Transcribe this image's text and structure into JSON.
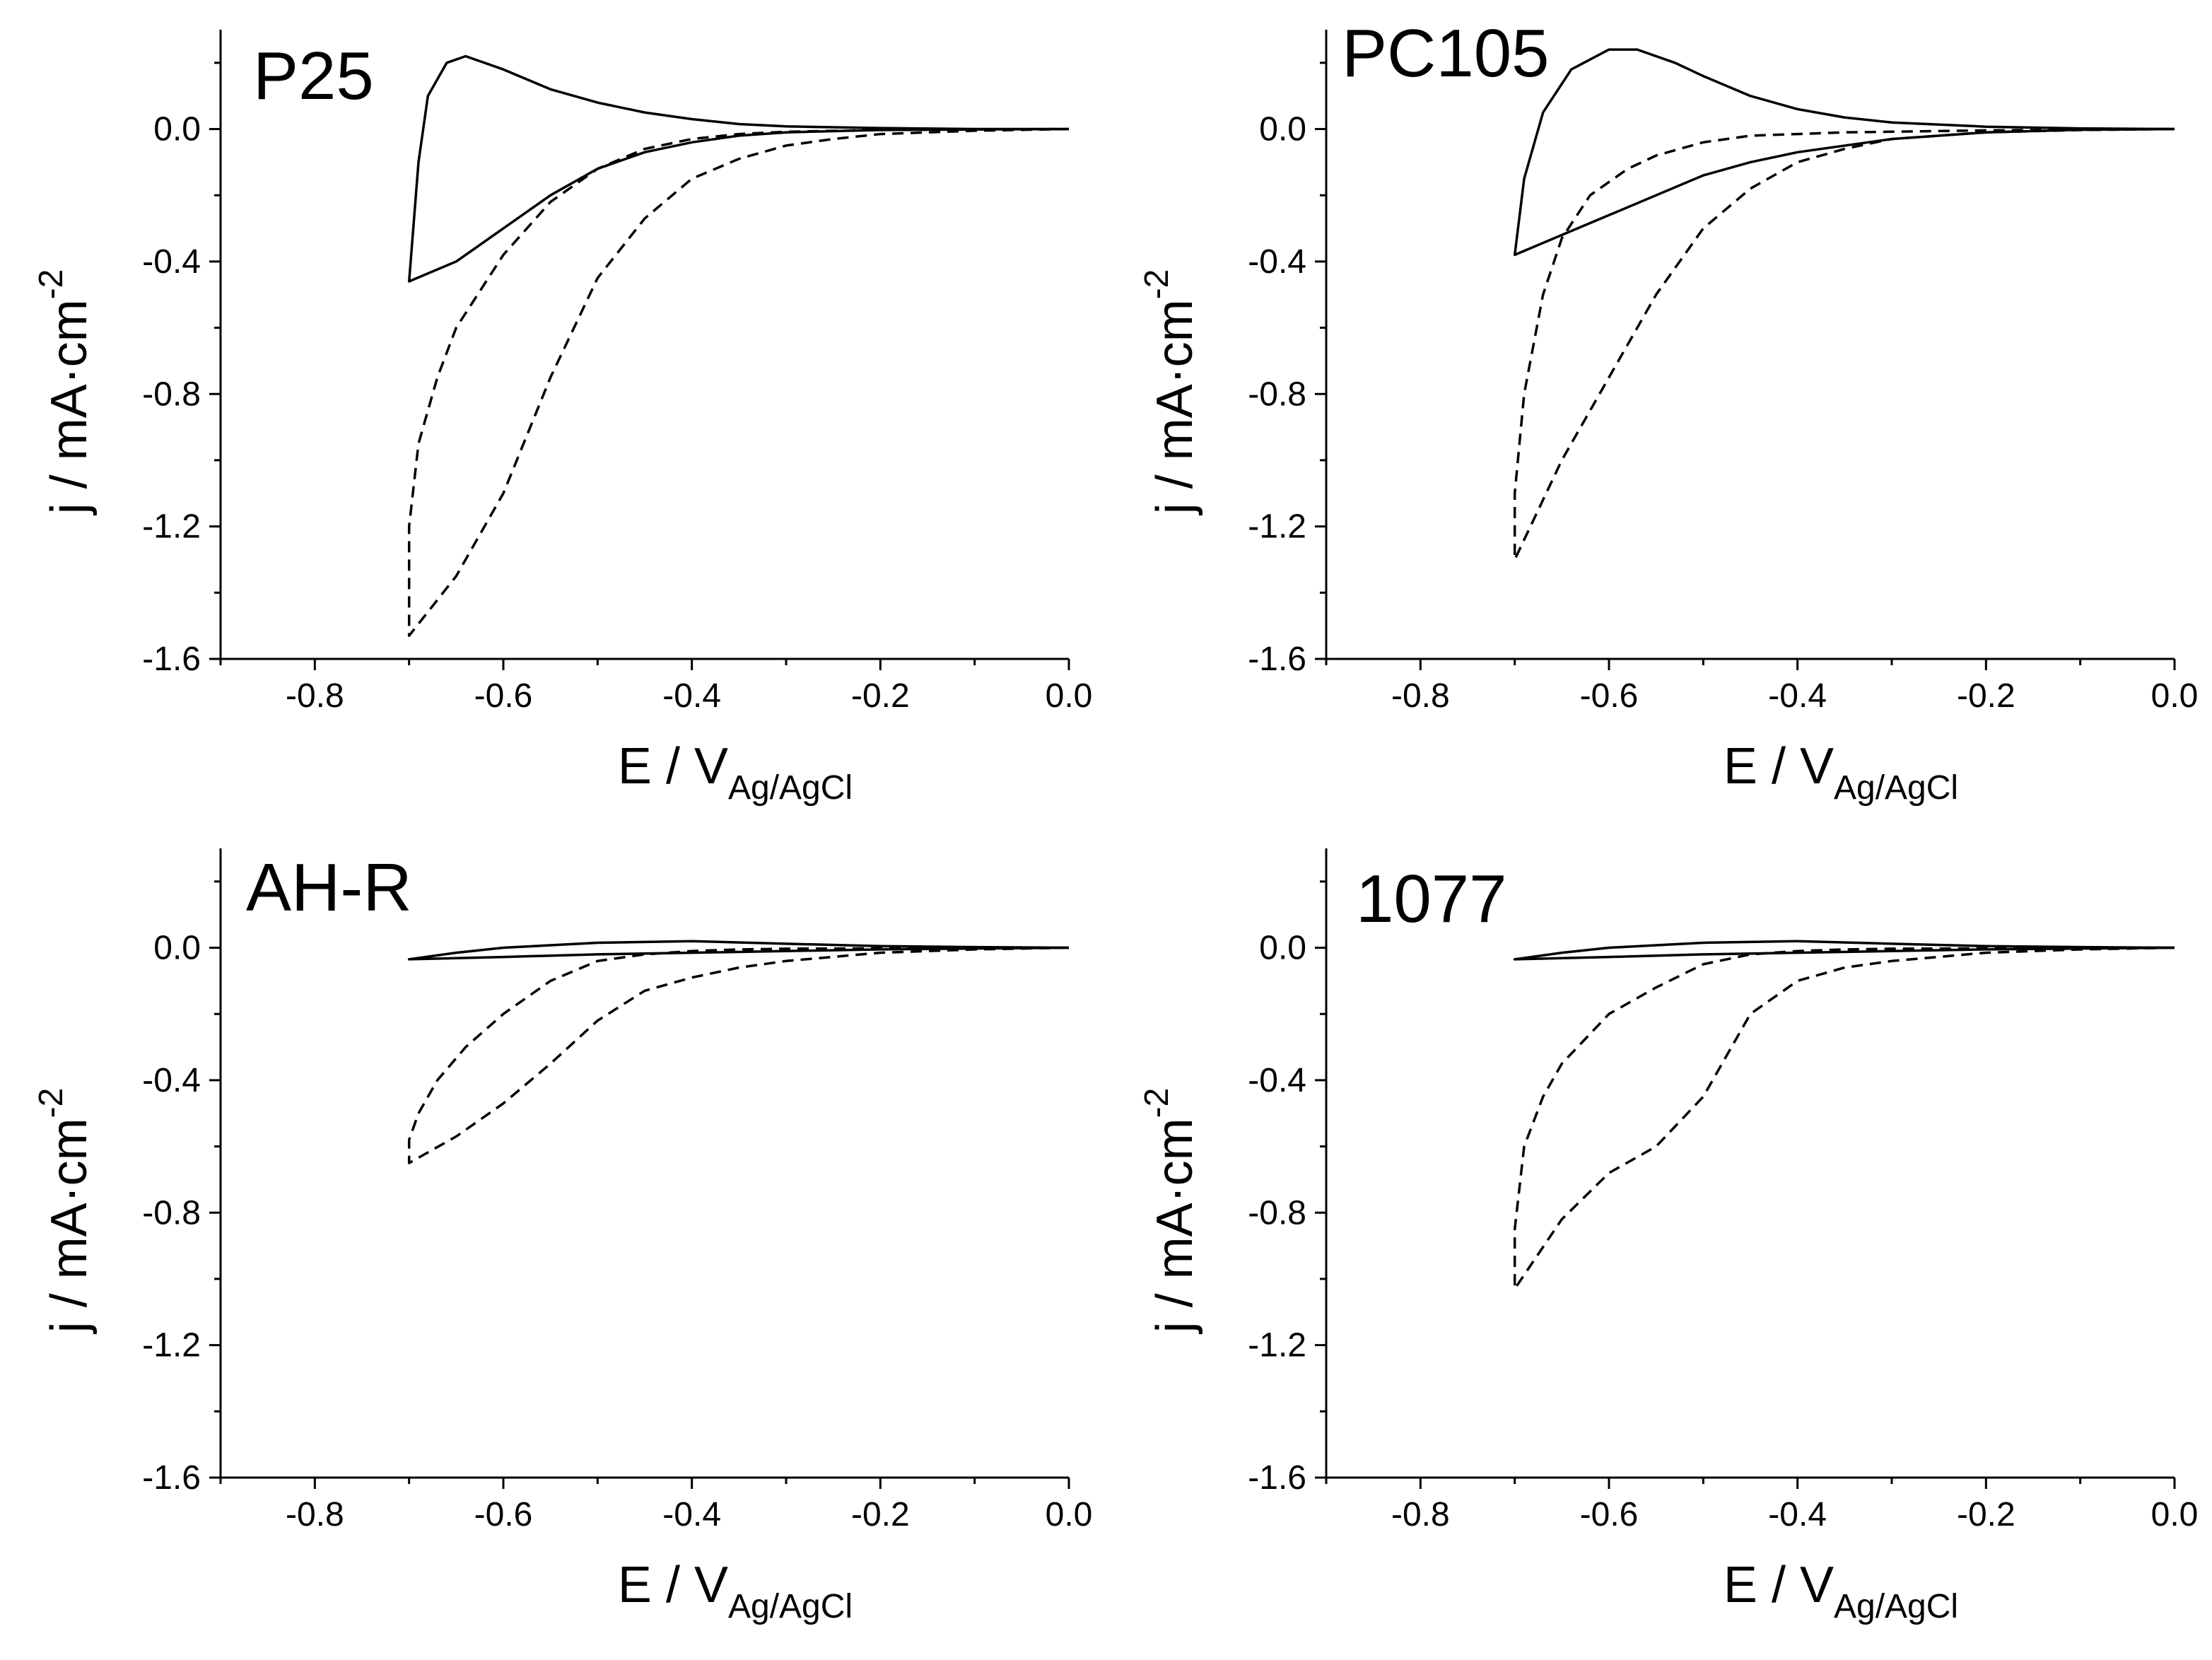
{
  "figure": {
    "axis_labels": {
      "xlabel_main": "E / V",
      "xlabel_sub": "Ag/AgCl",
      "ylabel_main": "j / mA·cm",
      "ylabel_sup": "-2"
    }
  },
  "chart_data": [
    {
      "type": "line",
      "title": "P25",
      "xlabel": "E / V_Ag/AgCl",
      "ylabel": "j / mA·cm^-2",
      "xlim": [
        -0.9,
        0.0
      ],
      "ylim": [
        -1.6,
        0.3
      ],
      "xticks": [
        "-0.8",
        "-0.6",
        "-0.4",
        "-0.2",
        "0.0"
      ],
      "yticks": [
        "0.0",
        "-0.4",
        "-0.8",
        "-1.2",
        "-1.6"
      ],
      "series": [
        {
          "name": "solid",
          "style": "solid",
          "x": [
            0.0,
            -0.1,
            -0.2,
            -0.3,
            -0.35,
            -0.4,
            -0.45,
            -0.5,
            -0.55,
            -0.6,
            -0.65,
            -0.7,
            -0.69,
            -0.68,
            -0.66,
            -0.64,
            -0.6,
            -0.55,
            -0.5,
            -0.45,
            -0.4,
            -0.35,
            -0.3,
            -0.2,
            -0.1,
            0.0
          ],
          "y": [
            0.0,
            -0.001,
            -0.003,
            -0.01,
            -0.02,
            -0.04,
            -0.07,
            -0.12,
            -0.2,
            -0.3,
            -0.4,
            -0.46,
            -0.1,
            0.1,
            0.2,
            0.22,
            0.18,
            0.12,
            0.08,
            0.05,
            0.03,
            0.015,
            0.008,
            0.003,
            0.0,
            0.0
          ]
        },
        {
          "name": "dashed",
          "style": "dashed",
          "x": [
            0.0,
            -0.1,
            -0.2,
            -0.25,
            -0.3,
            -0.35,
            -0.4,
            -0.45,
            -0.5,
            -0.55,
            -0.6,
            -0.65,
            -0.7,
            -0.7,
            -0.69,
            -0.67,
            -0.65,
            -0.6,
            -0.55,
            -0.5,
            -0.45,
            -0.4,
            -0.35,
            -0.3,
            -0.2,
            -0.1,
            0.0
          ],
          "y": [
            0.0,
            -0.005,
            -0.015,
            -0.03,
            -0.05,
            -0.09,
            -0.15,
            -0.27,
            -0.45,
            -0.75,
            -1.1,
            -1.35,
            -1.53,
            -1.2,
            -0.95,
            -0.75,
            -0.6,
            -0.38,
            -0.22,
            -0.12,
            -0.06,
            -0.03,
            -0.015,
            -0.008,
            -0.003,
            -0.001,
            0.0
          ]
        }
      ]
    },
    {
      "type": "line",
      "title": "PC105",
      "xlabel": "E / V_Ag/AgCl",
      "ylabel": "j / mA·cm^-2",
      "xlim": [
        -0.9,
        0.0
      ],
      "ylim": [
        -1.6,
        0.3
      ],
      "xticks": [
        "-0.8",
        "-0.6",
        "-0.4",
        "-0.2",
        "0.0"
      ],
      "yticks": [
        "0.0",
        "-0.4",
        "-0.8",
        "-1.2",
        "-1.6"
      ],
      "series": [
        {
          "name": "solid",
          "style": "solid",
          "x": [
            0.0,
            -0.1,
            -0.2,
            -0.3,
            -0.4,
            -0.45,
            -0.5,
            -0.55,
            -0.6,
            -0.65,
            -0.7,
            -0.69,
            -0.67,
            -0.64,
            -0.6,
            -0.57,
            -0.53,
            -0.5,
            -0.45,
            -0.4,
            -0.35,
            -0.3,
            -0.2,
            -0.1,
            0.0
          ],
          "y": [
            0.0,
            -0.002,
            -0.01,
            -0.03,
            -0.07,
            -0.1,
            -0.14,
            -0.2,
            -0.26,
            -0.32,
            -0.38,
            -0.15,
            0.05,
            0.18,
            0.24,
            0.24,
            0.2,
            0.16,
            0.1,
            0.06,
            0.035,
            0.02,
            0.007,
            0.002,
            0.0
          ]
        },
        {
          "name": "dashed",
          "style": "dashed",
          "x": [
            0.0,
            -0.1,
            -0.2,
            -0.3,
            -0.35,
            -0.4,
            -0.45,
            -0.5,
            -0.55,
            -0.6,
            -0.65,
            -0.7,
            -0.7,
            -0.69,
            -0.67,
            -0.65,
            -0.62,
            -0.58,
            -0.55,
            -0.5,
            -0.45,
            -0.4,
            -0.35,
            -0.3,
            -0.2,
            -0.1,
            0.0
          ],
          "y": [
            0.0,
            -0.003,
            -0.01,
            -0.03,
            -0.06,
            -0.1,
            -0.18,
            -0.3,
            -0.5,
            -0.75,
            -1.0,
            -1.3,
            -1.1,
            -0.8,
            -0.5,
            -0.33,
            -0.2,
            -0.12,
            -0.08,
            -0.04,
            -0.02,
            -0.015,
            -0.01,
            -0.008,
            -0.004,
            -0.002,
            0.0
          ]
        }
      ]
    },
    {
      "type": "line",
      "title": "AH-R",
      "xlabel": "E / V_Ag/AgCl",
      "ylabel": "j / mA·cm^-2",
      "xlim": [
        -0.9,
        0.0
      ],
      "ylim": [
        -1.6,
        0.3
      ],
      "xticks": [
        "-0.8",
        "-0.6",
        "-0.4",
        "-0.2",
        "0.0"
      ],
      "yticks": [
        "0.0",
        "-0.4",
        "-0.8",
        "-1.2",
        "-1.6"
      ],
      "series": [
        {
          "name": "solid",
          "style": "solid",
          "x": [
            0.0,
            -0.2,
            -0.4,
            -0.5,
            -0.6,
            -0.7,
            -0.65,
            -0.6,
            -0.5,
            -0.4,
            -0.3,
            -0.2,
            -0.1,
            0.0
          ],
          "y": [
            0.0,
            -0.005,
            -0.015,
            -0.02,
            -0.028,
            -0.035,
            -0.015,
            0.0,
            0.015,
            0.02,
            0.012,
            0.005,
            0.002,
            0.0
          ]
        },
        {
          "name": "dashed",
          "style": "dashed",
          "x": [
            0.0,
            -0.1,
            -0.2,
            -0.3,
            -0.35,
            -0.4,
            -0.45,
            -0.5,
            -0.55,
            -0.6,
            -0.65,
            -0.7,
            -0.7,
            -0.69,
            -0.67,
            -0.64,
            -0.6,
            -0.55,
            -0.5,
            -0.45,
            -0.4,
            -0.35,
            -0.3,
            -0.2,
            -0.1,
            0.0
          ],
          "y": [
            0.0,
            -0.005,
            -0.015,
            -0.04,
            -0.06,
            -0.09,
            -0.13,
            -0.22,
            -0.35,
            -0.47,
            -0.57,
            -0.65,
            -0.58,
            -0.5,
            -0.4,
            -0.3,
            -0.2,
            -0.1,
            -0.04,
            -0.02,
            -0.01,
            -0.005,
            -0.003,
            -0.002,
            -0.001,
            0.0
          ]
        }
      ]
    },
    {
      "type": "line",
      "title": "1077",
      "xlabel": "E / V_Ag/AgCl",
      "ylabel": "j / mA·cm^-2",
      "xlim": [
        -0.9,
        0.0
      ],
      "ylim": [
        -1.6,
        0.3
      ],
      "xticks": [
        "-0.8",
        "-0.6",
        "-0.4",
        "-0.2",
        "0.0"
      ],
      "yticks": [
        "0.0",
        "-0.4",
        "-0.8",
        "-1.2",
        "-1.6"
      ],
      "series": [
        {
          "name": "solid",
          "style": "solid",
          "x": [
            0.0,
            -0.2,
            -0.4,
            -0.5,
            -0.6,
            -0.7,
            -0.65,
            -0.6,
            -0.5,
            -0.4,
            -0.3,
            -0.2,
            -0.1,
            0.0
          ],
          "y": [
            0.0,
            -0.005,
            -0.015,
            -0.02,
            -0.028,
            -0.035,
            -0.015,
            0.0,
            0.015,
            0.02,
            0.012,
            0.005,
            0.002,
            0.0
          ]
        },
        {
          "name": "dashed",
          "style": "dashed",
          "x": [
            0.0,
            -0.1,
            -0.2,
            -0.3,
            -0.35,
            -0.4,
            -0.45,
            -0.5,
            -0.55,
            -0.6,
            -0.65,
            -0.7,
            -0.7,
            -0.69,
            -0.67,
            -0.65,
            -0.6,
            -0.55,
            -0.5,
            -0.45,
            -0.4,
            -0.35,
            -0.3,
            -0.2,
            -0.1,
            0.0
          ],
          "y": [
            0.0,
            -0.005,
            -0.015,
            -0.04,
            -0.06,
            -0.1,
            -0.2,
            -0.45,
            -0.6,
            -0.68,
            -0.82,
            -1.03,
            -0.85,
            -0.6,
            -0.45,
            -0.35,
            -0.2,
            -0.12,
            -0.05,
            -0.02,
            -0.01,
            -0.005,
            -0.003,
            -0.002,
            -0.001,
            0.0
          ]
        }
      ]
    }
  ]
}
